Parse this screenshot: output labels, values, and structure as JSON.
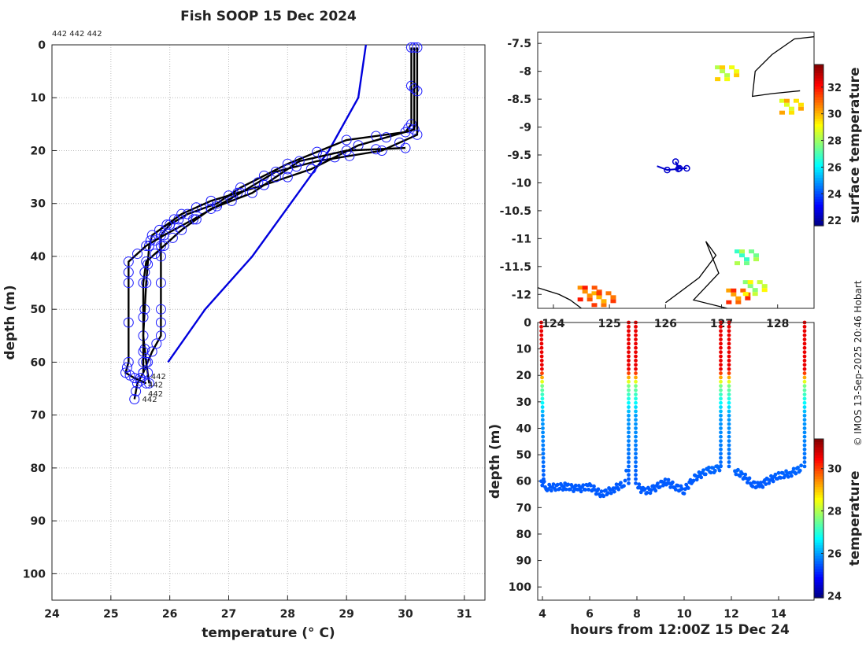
{
  "title": "Fish SOOP 15 Dec 2024",
  "profile_ids_label": "442 442 442",
  "watermark": "© IMOS 13-Sep-2025 20:46 Hobart",
  "chart_data": [
    {
      "type": "line",
      "name": "temperature-profile",
      "xlabel": "temperature (° C)",
      "ylabel": "depth (m)",
      "xlim": [
        24,
        31.35
      ],
      "ylim": [
        105,
        0
      ],
      "xticks": [
        24,
        25,
        26,
        27,
        28,
        29,
        30,
        31
      ],
      "yticks": [
        0,
        10,
        20,
        30,
        40,
        50,
        60,
        70,
        80,
        90,
        100
      ],
      "grid": true,
      "profile_labels": [
        "442",
        "442",
        "442",
        "442"
      ],
      "series": [
        {
          "name": "climatology",
          "color": "#0000dd",
          "points": [
            [
              29.33,
              0
            ],
            [
              29.2,
              10
            ],
            [
              28.7,
              20
            ],
            [
              28.05,
              30
            ],
            [
              27.4,
              40
            ],
            [
              26.6,
              50
            ],
            [
              25.97,
              60
            ]
          ]
        },
        {
          "name": "profile-1",
          "color": "#000000",
          "points": [
            [
              30.1,
              0.5
            ],
            [
              30.1,
              15
            ],
            [
              30.0,
              16.5
            ],
            [
              29,
              18
            ],
            [
              28,
              22.5
            ],
            [
              27.2,
              27
            ],
            [
              26.8,
              30
            ],
            [
              26.3,
              32
            ],
            [
              26.0,
              34
            ],
            [
              25.85,
              36
            ],
            [
              25.85,
              40
            ],
            [
              25.85,
              50
            ],
            [
              25.85,
              55
            ],
            [
              25.7,
              58
            ],
            [
              25.55,
              62
            ],
            [
              25.45,
              64
            ],
            [
              25.4,
              67
            ]
          ]
        },
        {
          "name": "profile-2",
          "color": "#000000",
          "points": [
            [
              30.15,
              0.5
            ],
            [
              30.15,
              16
            ],
            [
              29.2,
              19
            ],
            [
              28.4,
              23.5
            ],
            [
              27.6,
              26.5
            ],
            [
              26.7,
              29.5
            ],
            [
              26.2,
              32
            ],
            [
              25.95,
              34
            ],
            [
              25.7,
              36
            ],
            [
              25.65,
              38
            ],
            [
              25.6,
              45
            ],
            [
              25.55,
              55
            ],
            [
              25.6,
              60
            ],
            [
              25.65,
              64
            ]
          ]
        },
        {
          "name": "profile-3",
          "color": "#000000",
          "points": [
            [
              30.2,
              0.5
            ],
            [
              30.2,
              17
            ],
            [
              29.6,
              20
            ],
            [
              28.5,
              22
            ],
            [
              27.8,
              24
            ],
            [
              27.2,
              28
            ],
            [
              26.4,
              33
            ],
            [
              25.9,
              36
            ],
            [
              25.6,
              38
            ],
            [
              25.3,
              41
            ],
            [
              25.3,
              45
            ],
            [
              25.3,
              60
            ],
            [
              25.25,
              62
            ],
            [
              25.4,
              63
            ],
            [
              25.6,
              64
            ]
          ]
        },
        {
          "name": "profile-4",
          "color": "#000000",
          "points": [
            [
              30.0,
              19.5
            ],
            [
              29.0,
              20
            ],
            [
              28.2,
              22
            ],
            [
              27.8,
              25
            ],
            [
              27.4,
              28
            ],
            [
              26.7,
              31
            ],
            [
              26.2,
              35
            ],
            [
              25.9,
              38
            ],
            [
              25.6,
              41
            ],
            [
              25.55,
              45
            ],
            [
              25.55,
              58
            ],
            [
              25.55,
              62
            ]
          ]
        }
      ]
    },
    {
      "type": "heatmap",
      "name": "surface-temperature-map",
      "xlim": [
        123.72,
        128.65
      ],
      "ylim": [
        -12.25,
        -7.3
      ],
      "xticks": [
        124,
        125,
        126,
        127,
        128
      ],
      "yticks": [
        -7.5,
        -8,
        -8.5,
        -9,
        -9.5,
        -10,
        -10.5,
        -11,
        -11.5,
        -12
      ],
      "colorbar_label": "surface temperature",
      "colorbar_range": [
        21.6,
        33.7
      ],
      "colorbar_ticks": [
        22,
        24,
        26,
        28,
        30,
        32
      ],
      "track": [
        [
          125.85,
          -9.7
        ],
        [
          126.03,
          -9.77
        ],
        [
          126.23,
          -9.75
        ],
        [
          126.18,
          -9.62
        ],
        [
          126.25,
          -9.74
        ],
        [
          126.38,
          -9.74
        ]
      ],
      "sst_patches": [
        {
          "lon": 124.6,
          "lat": -11.95,
          "t": 31.2
        },
        {
          "lon": 124.85,
          "lat": -12.05,
          "t": 30.8
        },
        {
          "lon": 127.25,
          "lat": -12.0,
          "t": 31.0
        },
        {
          "lon": 127.55,
          "lat": -11.85,
          "t": 28.5
        },
        {
          "lon": 127.4,
          "lat": -11.3,
          "t": 27.5
        },
        {
          "lon": 128.2,
          "lat": -8.6,
          "t": 29.5
        },
        {
          "lon": 127.05,
          "lat": -8.0,
          "t": 29.0
        }
      ]
    },
    {
      "type": "scatter",
      "name": "depth-time",
      "xlabel": "hours from 12:00Z 15 Dec 24",
      "ylabel": "depth (m)",
      "xlim": [
        3.8,
        15.5
      ],
      "ylim": [
        105,
        0
      ],
      "xticks": [
        4,
        6,
        8,
        10,
        12,
        14
      ],
      "yticks": [
        0,
        10,
        20,
        30,
        40,
        50,
        60,
        70,
        80,
        90,
        100
      ],
      "colorbar_label": "temperature",
      "colorbar_range": [
        23.9,
        31.4
      ],
      "colorbar_ticks": [
        24,
        26,
        28,
        30
      ],
      "bottom_track": [
        [
          3.95,
          60
        ],
        [
          4.2,
          62.5
        ],
        [
          5,
          62
        ],
        [
          5.5,
          63
        ],
        [
          6,
          62
        ],
        [
          6.5,
          65
        ],
        [
          7,
          63
        ],
        [
          7.45,
          61
        ],
        [
          7.6,
          55
        ],
        [
          8.05,
          62
        ],
        [
          8.3,
          64
        ],
        [
          8.7,
          63
        ],
        [
          9.2,
          60
        ],
        [
          9.6,
          62
        ],
        [
          10,
          63.5
        ],
        [
          10.4,
          59
        ],
        [
          11,
          56
        ],
        [
          11.4,
          55.5
        ],
        [
          11.6,
          54
        ],
        [
          12.15,
          56
        ],
        [
          12.5,
          58
        ],
        [
          12.9,
          61
        ],
        [
          13.2,
          62
        ],
        [
          13.5,
          60
        ],
        [
          14,
          58
        ],
        [
          14.5,
          57
        ],
        [
          15,
          55
        ]
      ],
      "descents": [
        {
          "t0": 3.95,
          "t1": 4.05,
          "bottom": 60
        },
        {
          "t0": 7.65,
          "t1": 7.65,
          "bottom": 62
        },
        {
          "t0": 7.95,
          "t1": 7.95,
          "bottom": 62
        },
        {
          "t0": 11.55,
          "t1": 11.55,
          "bottom": 56
        },
        {
          "t0": 11.9,
          "t1": 11.9,
          "bottom": 56
        },
        {
          "t0": 15.1,
          "t1": 15.1,
          "bottom": 55
        }
      ]
    }
  ]
}
